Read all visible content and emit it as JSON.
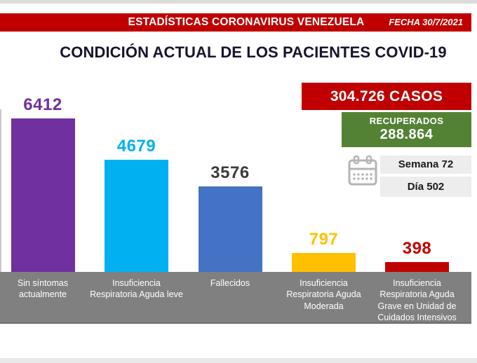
{
  "header": {
    "title": "ESTADÍSTICAS CORONAVIRUS VENEZUELA",
    "date": "FECHA 30/7/2021",
    "bg_color": "#C00000"
  },
  "page_title": "CONDICIÓN ACTUAL DE LOS PACIENTES COVID-19",
  "stats": {
    "cases": {
      "label": "304.726 CASOS",
      "bg_color": "#C00000"
    },
    "recovered": {
      "label": "RECUPERADOS",
      "value": "288.864",
      "bg_color": "#548235"
    },
    "week": {
      "label": "Semana 72",
      "bg_color": "#ededed"
    },
    "day": {
      "label": "Día 502",
      "bg_color": "#ededed"
    },
    "calendar_icon": "calendar-icon",
    "calendar_icon_color": "#b5b5b5"
  },
  "chart_data": {
    "type": "bar",
    "title": "CONDICIÓN ACTUAL DE LOS PACIENTES COVID-19",
    "categories": [
      "Sin síntomas actualmente",
      "Insuficiencia Respiratoria Aguda leve",
      "Fallecidos",
      "Insuficiencia Respiratoria Aguda Moderada",
      "Insuficiencia Respiratoria Aguda Grave en Unidad de Cuidados Intensivos"
    ],
    "category_lines": [
      [
        "Sin síntomas",
        "actualmente"
      ],
      [
        "Insuficiencia",
        "Respiratoria Aguda leve"
      ],
      [
        "Fallecidos"
      ],
      [
        "Insuficiencia",
        "Respiratoria Aguda",
        "Moderada"
      ],
      [
        "Insuficiencia",
        "Respiratoria Aguda",
        "Grave en Unidad de",
        "Cuidados Intensivos"
      ]
    ],
    "values": [
      6412,
      4679,
      3576,
      797,
      398
    ],
    "bar_colors": [
      "#7030A0",
      "#00B0F0",
      "#4472C4",
      "#FFC000",
      "#C00000"
    ],
    "label_colors": [
      "#7030A0",
      "#00B0F0",
      "#3D3D3D",
      "#FFC000",
      "#C00000"
    ],
    "xlabel": "",
    "ylabel": "",
    "ylim": [
      0,
      6412
    ],
    "grid": false,
    "legend": false,
    "data_labels": true,
    "category_band_color": "#808080"
  }
}
